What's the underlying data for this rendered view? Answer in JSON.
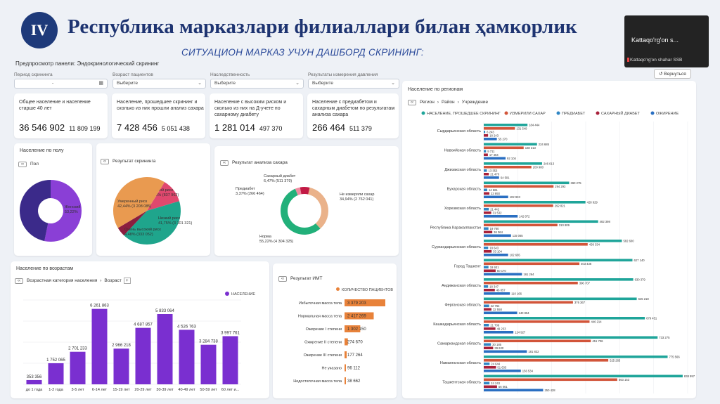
{
  "header": {
    "badge": "IV",
    "title": "Республика марказлари филиаллари билан ҳамкорлик",
    "subtitle": "СИТУАЦИОН МАРКАЗ УЧУН ДАШБОРД  СКРИНИНГ:",
    "preview": "Предпросмотр панели: Эндокринологический скрининг",
    "back": "Вернуться"
  },
  "video": {
    "name": "Kattaqo'rg'on s...",
    "caption": "Kattaqo'rg'on shahar SSB"
  },
  "filters": [
    {
      "label": "Период скрининга",
      "value": "-",
      "icon": "calendar-icon"
    },
    {
      "label": "Возраст пациентов",
      "value": "Выберите"
    },
    {
      "label": "Наследственность",
      "value": "Выберите"
    },
    {
      "label": "Результаты измерения давления",
      "value": "Выберите"
    }
  ],
  "kpis": [
    {
      "desc": "Общее население и население старше 40 лет",
      "big": "36 546 902",
      "small": "11 809 199"
    },
    {
      "desc": "Население, прошедшее скрининг и сколько из них прошли анализ сахара",
      "big": "7 428 456",
      "small": "5 051 438"
    },
    {
      "desc": "Население с высоким риском и сколько из них на Д-учете по сахарному диабету",
      "big": "1 281 014",
      "small": "497 370"
    },
    {
      "desc": "Население с предиабетом и сахарным диабетом по результатам анализа сахара",
      "big": "266 464",
      "small": "511 379"
    }
  ],
  "gender_panel": {
    "title": "Население по полу",
    "crumb": "Пол",
    "slices": [
      {
        "label": "Женский",
        "pct_label": "53,22%",
        "value": 53.22,
        "color": "#8a3fd6"
      },
      {
        "label": "Мужской",
        "pct_label": "46,78%",
        "value": 46.78,
        "color": "#3b2a8a"
      }
    ]
  },
  "screening_panel": {
    "title": "Результат скрининга",
    "slices": [
      {
        "label": "Высокий риск",
        "pct_label": "11,66% (837 962)",
        "value": 11.66,
        "color": "#e0486e"
      },
      {
        "label": "Низкий риск",
        "pct_label": "41,75% (3 101 321)",
        "value": 41.75,
        "color": "#1fa58c"
      },
      {
        "label": "Очень высокий риск",
        "pct_label": "4,48% (333 052)",
        "value": 4.48,
        "color": "#8b1e3f"
      },
      {
        "label": "Умеренный риск",
        "pct_label": "42,44% (3 208 085)",
        "value": 42.44,
        "color": "#e99a50"
      }
    ]
  },
  "sugar_panel": {
    "title": "Результат анализа сахара",
    "slices": [
      {
        "label": "Не измеряли сахар",
        "pct_label": "34,94% (2 762 041)",
        "value": 34.94,
        "color": "#eab28a"
      },
      {
        "label": "Норма",
        "pct_label": "55,22% (4 304 325)",
        "value": 55.22,
        "color": "#22b07a"
      },
      {
        "label": "Предиабет",
        "pct_label": "3,37% (266 464)",
        "value": 3.37,
        "color": "#f08aa0"
      },
      {
        "label": "Сахарный диабет",
        "pct_label": "6,47% (511 379)",
        "value": 6.47,
        "color": "#c21a45"
      }
    ]
  },
  "age_panel": {
    "title": "Население по возрастам",
    "crumb1": "Возрастная категория населения",
    "crumb2": "Возраст",
    "legend": "НАСЕЛЕНИЕ",
    "color": "#7a2fd0"
  },
  "bmi_panel": {
    "title": "Результат ИМТ",
    "legend": "КОЛИЧЕСТВО ПАЦИЕНТОВ",
    "color": "#e8823a"
  },
  "region_panel": {
    "title": "Население по регионам",
    "crumb1": "Регион",
    "crumb2": "Район",
    "crumb3": "Учреждение",
    "series_names": [
      "НАСЕЛЕНИЕ, ПРОШЕДШЕЕ СКРИНИНГ",
      "ИЗМЕРИЛИ САХАР",
      "ПРЕДИАБЕТ",
      "САХАРНЫЙ ДИАБЕТ",
      "ОЖИРЕНИЕ"
    ],
    "series_colors": [
      "#1fa59a",
      "#d2553a",
      "#2f86c4",
      "#a8203a",
      "#2a6fc2"
    ]
  },
  "chart_data": [
    {
      "type": "bar",
      "title": "Население по возрастам",
      "categories": [
        "до 1 года",
        "1-2 года",
        "3-5 лет",
        "6-14 лет",
        "15-19 лет",
        "20-29 лет",
        "30-39 лет",
        "40-49 лет",
        "50-59 лет",
        "60 лет и..."
      ],
      "series": [
        {
          "name": "НАСЕЛЕНИЕ",
          "values": [
            353356,
            1752065,
            2701233,
            6261863,
            2966218,
            4687857,
            5833064,
            4526763,
            3284738,
            3997761
          ]
        }
      ],
      "value_labels": [
        "353 356",
        "1 752 065",
        "2 701 233",
        "6 261 863",
        "2 966 218",
        "4 687 857",
        "5 833 064",
        "4 526 763",
        "3 284 738",
        "3 997 761"
      ],
      "ylim": [
        0,
        7000000
      ]
    },
    {
      "type": "bar",
      "title": "Результат ИМТ",
      "orientation": "horizontal",
      "categories": [
        "Избыточная масса тела",
        "Нормальная масса тела",
        "Ожирение I степени",
        "Ожирение II степени",
        "Ожирение III степени",
        "Не указано",
        "Недостаточная масса тела"
      ],
      "series": [
        {
          "name": "КОЛИЧЕСТВО ПАЦИЕНТОВ",
          "values": [
            3379203,
            2417269,
            1302150,
            274670,
            177264,
            96112,
            38662
          ]
        }
      ],
      "value_labels": [
        "3 379 203",
        "2 417 269",
        "1 302 150",
        "274 670",
        "177 264",
        "96 112",
        "38 662"
      ]
    },
    {
      "type": "bar",
      "title": "Население по регионам",
      "orientation": "horizontal",
      "categories": [
        "Сырдарьинская область",
        "Навоийская область",
        "Джизакская область",
        "Бухарская область",
        "Хорезмская область",
        "Республика Каракалпакстан",
        "Сурхандарьинская область",
        "Город Ташкент",
        "Андижанская область",
        "Ферганская область",
        "Кашкадарьинская область",
        "Самаркандская область",
        "Наманганская область",
        "Ташкентская область"
      ],
      "series": [
        {
          "name": "НАСЕЛЕНИЕ, ПРОШЕДШЕЕ СКРИНИНГ",
          "values": [
            184444,
            224685,
            246013,
            360275,
            428929,
            482398,
            582600,
            627140,
            630379,
            645218,
            679451,
            733275,
            775566,
            838997
          ]
        },
        {
          "name": "ИЗМЕРИЛИ САХАР",
          "values": [
            131549,
            168313,
            200980,
            294293,
            292821,
            310809,
            438334,
            403436,
            396707,
            376367,
            446214,
            451706,
            525265,
            563153
          ]
        },
        {
          "name": "ПРЕДИАБЕТ",
          "values": [
            6243,
            9711,
            13353,
            14661,
            21442,
            19760,
            18643,
            19931,
            18347,
            22764,
            21706,
            30185,
            24644,
            24243
          ]
        },
        {
          "name": "САХАРНЫЙ ДИАБЕТ",
          "values": [
            18243,
            17464,
            21470,
            23893,
            31532,
            36064,
            33104,
            50170,
            46857,
            32558,
            49233,
            39630,
            51633,
            56061
          ]
        },
        {
          "name": "ОЖИРЕНИЕ",
          "values": [
            55270,
            92104,
            64501,
            102933,
            142872,
            115065,
            102665,
            161264,
            110166,
            140854,
            124927,
            181832,
            156534,
            250428
          ]
        }
      ],
      "value_labels": [
        [
          "184 444",
          "224 685",
          "246 013",
          "360 275",
          "428 929",
          "482 398",
          "582 600",
          "627 140",
          "630 379",
          "645 218",
          "679 451",
          "733 275",
          "775 566",
          "838 997"
        ],
        [
          "131 549",
          "168 313",
          "200 980",
          "294 293",
          "292 821",
          "310 809",
          "438 334",
          "403 436",
          "396 707",
          "376 367",
          "446 214",
          "451 706",
          "525 265",
          "563 153"
        ],
        [
          "6 243",
          "9 711",
          "13 353",
          "14 661",
          "21 442",
          "19 760",
          "18 643",
          "19 931",
          "18 347",
          "22 764",
          "21 706",
          "30 185",
          "24 644",
          "24 243"
        ],
        [
          "18 243",
          "17 464",
          "21 470",
          "23 893",
          "31 532",
          "36 064",
          "33 104",
          "50 170",
          "46 857",
          "32 558",
          "49 233",
          "39 630",
          "51 633",
          "56 061"
        ],
        [
          "55 270",
          "92 104",
          "64 501",
          "102 933",
          "142 872",
          "115 065",
          "102 665",
          "161 264",
          "110 166",
          "140 854",
          "124 927",
          "181 832",
          "156 534",
          "250 428"
        ]
      ]
    }
  ]
}
